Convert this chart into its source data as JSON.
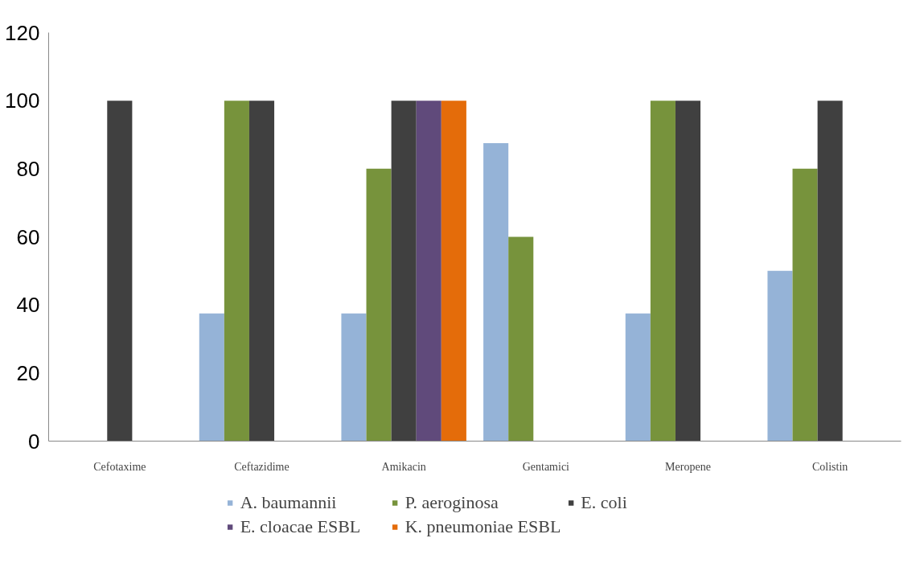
{
  "chart_data": {
    "type": "bar",
    "categories": [
      "Cefotaxime",
      "Ceftazidime",
      "Amikacin",
      "Gentamici",
      "Meropene",
      "Colistin"
    ],
    "series": [
      {
        "name": "A. baumannii",
        "color": "#95b3d7",
        "values": [
          null,
          37.5,
          37.5,
          87.5,
          37.5,
          50
        ]
      },
      {
        "name": "P. aeroginosa",
        "color": "#77933c",
        "values": [
          null,
          100,
          80,
          60,
          100,
          80
        ]
      },
      {
        "name": "E. coli",
        "color": "#404040",
        "values": [
          100,
          100,
          100,
          null,
          100,
          100
        ]
      },
      {
        "name": "E. cloacae ESBL",
        "color": "#604a7b",
        "values": [
          null,
          null,
          100,
          null,
          null,
          null
        ]
      },
      {
        "name": "K. pneumoniae ESBL",
        "color": "#e46c0a",
        "values": [
          null,
          null,
          100,
          null,
          null,
          null
        ]
      }
    ],
    "ylim": [
      0,
      120
    ],
    "yticks": [
      0,
      20,
      40,
      60,
      80,
      100,
      120
    ],
    "grid": false,
    "legend": "bottom"
  }
}
